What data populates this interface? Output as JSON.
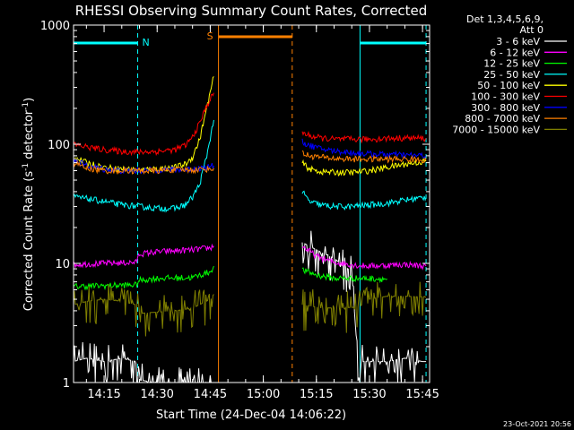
{
  "chart_data": {
    "type": "line",
    "title": "RHESSI Observing Summary Count Rates, Corrected",
    "xlabel": "Start Time (24-Dec-04 14:06:22)",
    "ylabel": "Corrected Count Rate (s",
    "ylabel_sup": "-1",
    "ylabel_tail": " detector",
    "ylabel_sup2": "-1",
    "ylabel_end": ")",
    "x_scale": "time",
    "x_range": [
      "14:06:22",
      "15:47:00"
    ],
    "x_ticks": [
      "14:15",
      "14:30",
      "14:45",
      "15:00",
      "15:15",
      "15:30",
      "15:45"
    ],
    "y_scale": "log",
    "ylim": [
      1,
      1000
    ],
    "y_ticks": [
      "1",
      "10",
      "100",
      "1000"
    ],
    "grid": false,
    "legend_placement": "outside-top-right",
    "legend_header": [
      "Det 1,3,4,5,6,9,",
      "Att 0"
    ],
    "timestamp": "23-Oct-2021 20:56",
    "flags": [
      {
        "label": "N",
        "color": "#00ffff",
        "intervals": [
          [
            "14:06:22",
            "14:24:30"
          ],
          [
            "15:27:20",
            "15:46:00"
          ]
        ]
      },
      {
        "label": "S",
        "color": "#ff8000",
        "intervals": [
          [
            "14:47:20",
            "15:08:10"
          ]
        ]
      }
    ],
    "vertical_markers": [
      {
        "time": "14:24:30",
        "color": "#00ffff",
        "style": "dashed"
      },
      {
        "time": "15:27:20",
        "color": "#00ffff",
        "style": "solid"
      },
      {
        "time": "15:46:00",
        "color": "#00ffff",
        "style": "dashed"
      },
      {
        "time": "14:47:20",
        "color": "#ff8000",
        "style": "solid"
      },
      {
        "time": "15:08:10",
        "color": "#ff8000",
        "style": "dashed"
      }
    ],
    "data_gap": [
      "14:46:00",
      "15:11:30"
    ],
    "series": [
      {
        "name": "3 - 6 keV",
        "color": "#ffffff",
        "x": [
          "14:06:22",
          "14:10",
          "14:15",
          "14:20",
          "14:24",
          "14:25",
          "14:30",
          "14:35",
          "14:40",
          "14:45",
          "14:46",
          "15:11",
          "15:15",
          "15:20",
          "15:25",
          "15:27",
          "15:28",
          "15:35",
          "15:40",
          "15:45",
          "15:46"
        ],
        "y": [
          1.5,
          1.6,
          1.5,
          1.6,
          1.5,
          1.05,
          1.0,
          1.0,
          1.0,
          1.0,
          1.0,
          15,
          13,
          11,
          8.5,
          1.1,
          1.5,
          1.5,
          1.6,
          1.5,
          1.5
        ]
      },
      {
        "name": "6 - 12 keV",
        "color": "#ff00ff",
        "x": [
          "14:06:22",
          "14:15",
          "14:24",
          "14:25",
          "14:30",
          "14:40",
          "14:45",
          "14:46",
          "15:11",
          "15:15",
          "15:20",
          "15:27",
          "15:30",
          "15:40",
          "15:46"
        ],
        "y": [
          9.8,
          10,
          10.2,
          12,
          12.5,
          13,
          13.5,
          14,
          14,
          11.5,
          10.2,
          9.6,
          9.5,
          9.8,
          9.5
        ]
      },
      {
        "name": "12 - 25 keV",
        "color": "#00ff00",
        "x": [
          "14:06:22",
          "14:15",
          "14:24",
          "14:25",
          "14:30",
          "14:40",
          "14:45",
          "14:46",
          "15:11",
          "15:15",
          "15:20",
          "15:27",
          "15:35",
          "15:46"
        ],
        "y": [
          6.4,
          6.5,
          6.6,
          7.2,
          7.5,
          7.6,
          8.5,
          9.5,
          8.8,
          8.0,
          7.5,
          7.5,
          7.4,
          7.4
        ]
      },
      {
        "name": "25 - 50 keV",
        "color": "#00ffff",
        "x": [
          "14:06:22",
          "14:10",
          "14:15",
          "14:20",
          "14:25",
          "14:30",
          "14:35",
          "14:38",
          "14:40",
          "14:42",
          "14:44",
          "14:46",
          "15:11",
          "15:13",
          "15:16",
          "15:20",
          "15:25",
          "15:30",
          "15:35",
          "15:40",
          "15:46"
        ],
        "y": [
          36,
          35,
          33,
          31,
          30,
          29,
          29,
          31,
          36,
          46,
          80,
          160,
          40,
          33,
          31,
          30,
          30,
          31,
          32,
          34,
          36
        ]
      },
      {
        "name": "50 - 100 keV",
        "color": "#ffff00",
        "x": [
          "14:06:22",
          "14:10",
          "14:15",
          "14:20",
          "14:25",
          "14:30",
          "14:35",
          "14:38",
          "14:40",
          "14:42",
          "14:44",
          "14:46",
          "15:11",
          "15:13",
          "15:16",
          "15:20",
          "15:25",
          "15:30",
          "15:35",
          "15:40",
          "15:46"
        ],
        "y": [
          78,
          70,
          64,
          62,
          61,
          62,
          64,
          68,
          78,
          110,
          200,
          370,
          70,
          62,
          59,
          58,
          58,
          60,
          64,
          68,
          72
        ]
      },
      {
        "name": "100 - 300 keV",
        "color": "#ff0000",
        "x": [
          "14:06:22",
          "14:10",
          "14:15",
          "14:20",
          "14:25",
          "14:30",
          "14:35",
          "14:38",
          "14:40",
          "14:42",
          "14:44",
          "14:46",
          "15:11",
          "15:13",
          "15:16",
          "15:20",
          "15:25",
          "15:30",
          "15:35",
          "15:40",
          "15:46"
        ],
        "y": [
          100,
          95,
          90,
          87,
          86,
          87,
          90,
          98,
          115,
          150,
          210,
          270,
          125,
          118,
          113,
          110,
          110,
          110,
          112,
          113,
          112
        ]
      },
      {
        "name": "300 - 800 keV",
        "color": "#0000ff",
        "x": [
          "14:06:22",
          "14:10",
          "14:15",
          "14:20",
          "14:25",
          "14:30",
          "14:35",
          "14:40",
          "14:44",
          "14:46",
          "15:11",
          "15:13",
          "15:16",
          "15:20",
          "15:25",
          "15:30",
          "15:35",
          "15:40",
          "15:46"
        ],
        "y": [
          74,
          66,
          62,
          60,
          60,
          61,
          61,
          62,
          64,
          66,
          105,
          98,
          92,
          88,
          85,
          83,
          82,
          81,
          80
        ]
      },
      {
        "name": "800 - 7000 keV",
        "color": "#ff8000",
        "x": [
          "14:06:22",
          "14:10",
          "14:15",
          "14:20",
          "14:25",
          "14:30",
          "14:35",
          "14:40",
          "14:44",
          "14:46",
          "15:11",
          "15:13",
          "15:16",
          "15:20",
          "15:25",
          "15:30",
          "15:35",
          "15:40",
          "15:46"
        ],
        "y": [
          70,
          63,
          60,
          60,
          60,
          60,
          61,
          61,
          62,
          63,
          84,
          80,
          78,
          76,
          75,
          75,
          75,
          75,
          74
        ]
      },
      {
        "name": "7000 - 15000 keV",
        "color": "#808000",
        "x": [
          "14:06:22",
          "14:10",
          "14:15",
          "14:20",
          "14:24",
          "14:25",
          "14:30",
          "14:35",
          "14:40",
          "14:45",
          "14:46",
          "15:11",
          "15:15",
          "15:20",
          "15:27",
          "15:30",
          "15:35",
          "15:40",
          "15:46"
        ],
        "y": [
          4.5,
          4.8,
          5.0,
          4.8,
          4.5,
          3.8,
          3.9,
          4.0,
          4.2,
          5.0,
          5.5,
          4.5,
          4.3,
          4.2,
          4.3,
          5.0,
          5.3,
          5.3,
          5.2
        ]
      }
    ]
  }
}
